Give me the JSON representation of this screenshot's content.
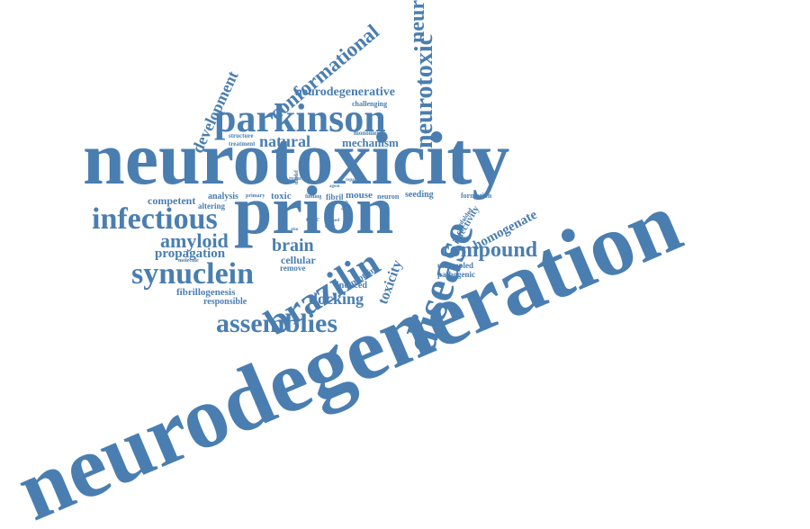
{
  "word_color": "#4a7eb0",
  "words": [
    {
      "key": "neurodegeneration",
      "text": "neurodegeneration"
    },
    {
      "key": "neurotoxicity",
      "text": "neurotoxicity"
    },
    {
      "key": "prion",
      "text": "prion"
    },
    {
      "key": "parkinson",
      "text": "parkinson"
    },
    {
      "key": "disease",
      "text": "disease"
    },
    {
      "key": "brazilin",
      "text": "brazilin"
    },
    {
      "key": "synuclein",
      "text": "synuclein"
    },
    {
      "key": "infectious",
      "text": "infectious"
    },
    {
      "key": "assemblies",
      "text": "assemblies"
    },
    {
      "key": "neurotoxic-vertical",
      "text": "neurotoxic"
    },
    {
      "key": "neurotoxic-top",
      "text": "neurotoxic"
    },
    {
      "key": "compound",
      "text": "compound"
    },
    {
      "key": "conformational",
      "text": "conformational"
    },
    {
      "key": "amyloid",
      "text": "amyloid"
    },
    {
      "key": "development",
      "text": "development"
    },
    {
      "key": "natural",
      "text": "natural"
    },
    {
      "key": "brain",
      "text": "brain"
    },
    {
      "key": "docking",
      "text": "docking"
    },
    {
      "key": "propagation",
      "text": "propagation"
    },
    {
      "key": "homogenate",
      "text": "homogenate"
    },
    {
      "key": "toxicity",
      "text": "toxicity"
    },
    {
      "key": "neurodegenerative",
      "text": "neurodegenerative"
    },
    {
      "key": "mechanism",
      "text": "mechanism"
    },
    {
      "key": "cellular",
      "text": "cellular"
    },
    {
      "key": "fibrillogenesis",
      "text": "fibrillogenesis"
    },
    {
      "key": "competent",
      "text": "competent"
    },
    {
      "key": "infectivity",
      "text": "infectivity"
    },
    {
      "key": "protein",
      "text": "protein"
    },
    {
      "key": "responsible",
      "text": "responsible"
    },
    {
      "key": "induced",
      "text": "induced"
    },
    {
      "key": "remove",
      "text": "remove"
    },
    {
      "key": "uncoupled",
      "text": "uncoupled"
    },
    {
      "key": "pathogenic",
      "text": "pathogenic"
    },
    {
      "key": "altering",
      "text": "altering"
    },
    {
      "key": "analysis",
      "text": "analysis"
    },
    {
      "key": "toxic",
      "text": "toxic"
    },
    {
      "key": "mouse",
      "text": "mouse"
    },
    {
      "key": "seeding",
      "text": "seeding"
    },
    {
      "key": "neuron",
      "text": "neuron"
    },
    {
      "key": "formation",
      "text": "formation"
    },
    {
      "key": "fibril",
      "text": "fibril"
    },
    {
      "key": "quic",
      "text": "quic"
    },
    {
      "key": "unfolded",
      "text": "unfolded"
    },
    {
      "key": "challenging",
      "text": "challenging"
    },
    {
      "key": "monomer",
      "text": "monomer"
    },
    {
      "key": "structure",
      "text": "structure"
    },
    {
      "key": "treatment",
      "text": "treatment"
    },
    {
      "key": "molecule",
      "text": "molecule"
    },
    {
      "key": "primary",
      "text": "primary"
    },
    {
      "key": "finding",
      "text": "finding"
    },
    {
      "key": "model",
      "text": "model"
    },
    {
      "key": "reduce",
      "text": "reduce"
    },
    {
      "key": "agent",
      "text": "agent"
    },
    {
      "key": "study",
      "text": "study"
    },
    {
      "key": "method",
      "text": "method"
    },
    {
      "key": "repair",
      "text": "repair"
    },
    {
      "key": "also",
      "text": "also"
    },
    {
      "key": "rapid",
      "text": "rapid"
    }
  ]
}
